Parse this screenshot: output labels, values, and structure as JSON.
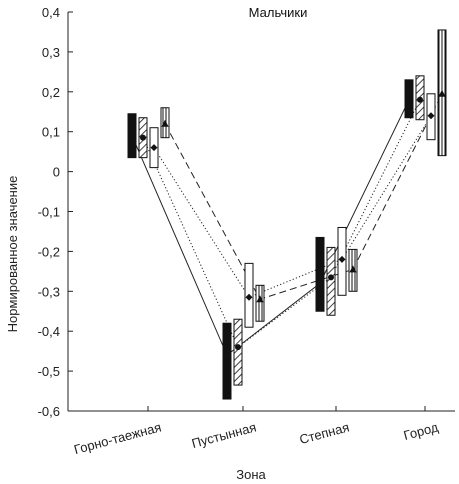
{
  "chart_data": {
    "type": "line",
    "title": "Мальчики",
    "xlabel": "Зона",
    "ylabel": "Нормированное значение",
    "ylim": [
      -0.6,
      0.4
    ],
    "yticks": [
      "0,4",
      "0,3",
      "0,2",
      "0,1",
      "0",
      "-0,1",
      "-0,2",
      "-0,3",
      "-0,4",
      "-0,5",
      "-0,6"
    ],
    "ytick_values": [
      0.4,
      0.3,
      0.2,
      0.1,
      0,
      -0.1,
      -0.2,
      -0.3,
      -0.4,
      -0.5,
      -0.6
    ],
    "categories": [
      "Горно-таежная",
      "Пустынная",
      "Степная",
      "Город"
    ],
    "grid": false,
    "series": [
      {
        "pattern": "solid-black",
        "line": "solid",
        "marker": "square",
        "values": [
          0.09,
          -0.46,
          -0.28,
          0.18
        ],
        "box_low": [
          0.035,
          -0.57,
          -0.35,
          0.135
        ],
        "box_high": [
          0.145,
          -0.38,
          -0.165,
          0.23
        ]
      },
      {
        "pattern": "diagonal-hatch",
        "line": "dotted",
        "marker": "circle",
        "values": [
          0.085,
          -0.44,
          -0.265,
          0.18
        ],
        "box_low": [
          0.035,
          -0.535,
          -0.36,
          0.13
        ],
        "box_high": [
          0.135,
          -0.37,
          -0.19,
          0.24
        ]
      },
      {
        "pattern": "white",
        "line": "dotted",
        "marker": "diamond",
        "values": [
          0.06,
          -0.315,
          -0.22,
          0.14
        ],
        "box_low": [
          0.01,
          -0.39,
          -0.31,
          0.08
        ],
        "box_high": [
          0.11,
          -0.23,
          -0.14,
          0.195
        ]
      },
      {
        "pattern": "vertical-lines",
        "line": "dashed",
        "marker": "triangle",
        "values": [
          0.12,
          -0.32,
          -0.245,
          0.195
        ],
        "box_low": [
          0.085,
          -0.375,
          -0.3,
          0.04
        ],
        "box_high": [
          0.16,
          -0.285,
          -0.195,
          0.355
        ]
      }
    ]
  }
}
